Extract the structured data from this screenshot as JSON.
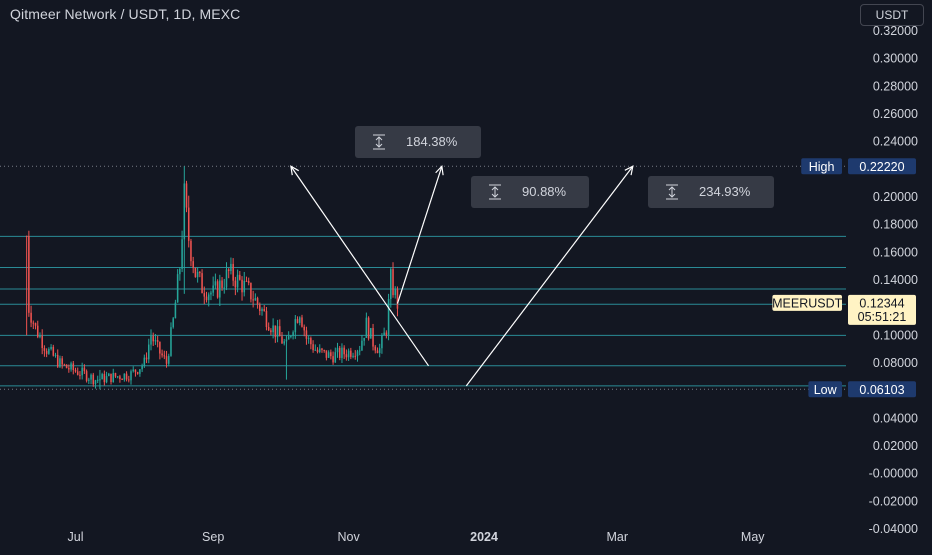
{
  "header": {
    "title": "Qitmeer Network / USDT, 1D, MEXC",
    "currency_button": "USDT"
  },
  "chart_data": {
    "type": "candlestick",
    "symbol": "MEERUSDT",
    "ylim": [
      -0.045,
      0.325
    ],
    "y_ticks": [
      {
        "value": 0.32,
        "label": "0.32000"
      },
      {
        "value": 0.3,
        "label": "0.30000"
      },
      {
        "value": 0.28,
        "label": "0.28000"
      },
      {
        "value": 0.26,
        "label": "0.26000"
      },
      {
        "value": 0.24,
        "label": "0.24000"
      },
      {
        "value": 0.2,
        "label": "0.20000"
      },
      {
        "value": 0.18,
        "label": "0.18000"
      },
      {
        "value": 0.16,
        "label": "0.16000"
      },
      {
        "value": 0.14,
        "label": "0.14000"
      },
      {
        "value": 0.1,
        "label": "0.10000"
      },
      {
        "value": 0.08,
        "label": "0.08000"
      },
      {
        "value": 0.04,
        "label": "0.04000"
      },
      {
        "value": 0.02,
        "label": "0.02000"
      },
      {
        "value": 0.0,
        "label": "-0.00000"
      },
      {
        "value": -0.02,
        "label": "-0.02000"
      },
      {
        "value": -0.04,
        "label": "-0.04000"
      }
    ],
    "x_ticks": [
      {
        "date": "2023-07-01",
        "label": "Jul",
        "bold": false
      },
      {
        "date": "2023-09-01",
        "label": "Sep",
        "bold": false
      },
      {
        "date": "2023-11-01",
        "label": "Nov",
        "bold": false
      },
      {
        "date": "2024-01-01",
        "label": "2024",
        "bold": true
      },
      {
        "date": "2024-03-01",
        "label": "Mar",
        "bold": false
      },
      {
        "date": "2024-05-01",
        "label": "May",
        "bold": false
      }
    ],
    "x_range": [
      "2023-05-28",
      "2024-06-12"
    ],
    "high": {
      "label": "High",
      "value": 0.2222,
      "value_label": "0.22220"
    },
    "low": {
      "label": "Low",
      "value": 0.06103,
      "value_label": "0.06103"
    },
    "last_price": {
      "symbol": "MEERUSDT",
      "value": 0.12344,
      "value_label": "0.12344",
      "countdown": "05:51:21"
    },
    "horizontal_levels": [
      0.0635,
      0.078,
      0.1,
      0.1225,
      0.1335,
      0.149,
      0.1715
    ],
    "price_path": [
      [
        "2023-06-09",
        0.172
      ],
      [
        "2023-06-10",
        0.12
      ],
      [
        "2023-06-13",
        0.105
      ],
      [
        "2023-06-18",
        0.09
      ],
      [
        "2023-06-25",
        0.078
      ],
      [
        "2023-07-05",
        0.072
      ],
      [
        "2023-07-10",
        0.068
      ],
      [
        "2023-07-18",
        0.07
      ],
      [
        "2023-07-26",
        0.072
      ],
      [
        "2023-08-01",
        0.08
      ],
      [
        "2023-08-04",
        0.1
      ],
      [
        "2023-08-07",
        0.09
      ],
      [
        "2023-08-11",
        0.08
      ],
      [
        "2023-08-14",
        0.11
      ],
      [
        "2023-08-17",
        0.15
      ],
      [
        "2023-08-19",
        0.2
      ],
      [
        "2023-08-21",
        0.17
      ],
      [
        "2023-08-24",
        0.145
      ],
      [
        "2023-08-27",
        0.135
      ],
      [
        "2023-09-01",
        0.13
      ],
      [
        "2023-09-05",
        0.138
      ],
      [
        "2023-09-08",
        0.145
      ],
      [
        "2023-09-14",
        0.137
      ],
      [
        "2023-09-18",
        0.13
      ],
      [
        "2023-09-23",
        0.118
      ],
      [
        "2023-09-28",
        0.105
      ],
      [
        "2023-10-04",
        0.092
      ],
      [
        "2023-10-07",
        0.108
      ],
      [
        "2023-10-10",
        0.118
      ],
      [
        "2023-10-13",
        0.098
      ],
      [
        "2023-10-18",
        0.088
      ],
      [
        "2023-10-24",
        0.085
      ],
      [
        "2023-11-01",
        0.088
      ],
      [
        "2023-11-06",
        0.092
      ],
      [
        "2023-11-09",
        0.108
      ],
      [
        "2023-11-12",
        0.095
      ],
      [
        "2023-11-15",
        0.09
      ],
      [
        "2023-11-18",
        0.105
      ],
      [
        "2023-11-20",
        0.14
      ],
      [
        "2023-11-23",
        0.123
      ]
    ],
    "candle_extremes": [
      {
        "date": "2023-06-09",
        "high": 0.172,
        "low": 0.1
      },
      {
        "date": "2023-07-12",
        "high": 0.075,
        "low": 0.06103
      },
      {
        "date": "2023-08-19",
        "high": 0.2222,
        "low": 0.13
      },
      {
        "date": "2023-10-04",
        "high": 0.1,
        "low": 0.068
      },
      {
        "date": "2023-11-20",
        "high": 0.149,
        "low": 0.12
      }
    ],
    "projections": [
      {
        "label": "184.38%",
        "segments": [
          [
            [
              "2023-10-06",
              0.2222
            ],
            [
              "2023-12-07",
              0.078
            ]
          ],
          [
            [
              "2023-11-23",
              0.123
            ],
            [
              "2023-12-13",
              0.2222
            ]
          ]
        ]
      },
      {
        "label": "90.88%",
        "segments": [
          [
            [
              "2023-11-23",
              0.123
            ],
            [
              "2023-12-13",
              0.2222
            ]
          ]
        ]
      },
      {
        "label": "234.93%",
        "segments": [
          [
            [
              "2023-12-24",
              0.0635
            ],
            [
              "2024-03-08",
              0.2222
            ]
          ]
        ]
      }
    ],
    "colors": {
      "background": "#131722",
      "up": "#26a69a",
      "down": "#ef5350",
      "level_line": "#2a8b96",
      "projection_line": "#ffffff",
      "axis_text": "#d1d4dc",
      "high_low_label_bg": "#1e3a6e",
      "last_price_bg": "#fff3c4",
      "measure_box_bg": "#363a45"
    }
  }
}
